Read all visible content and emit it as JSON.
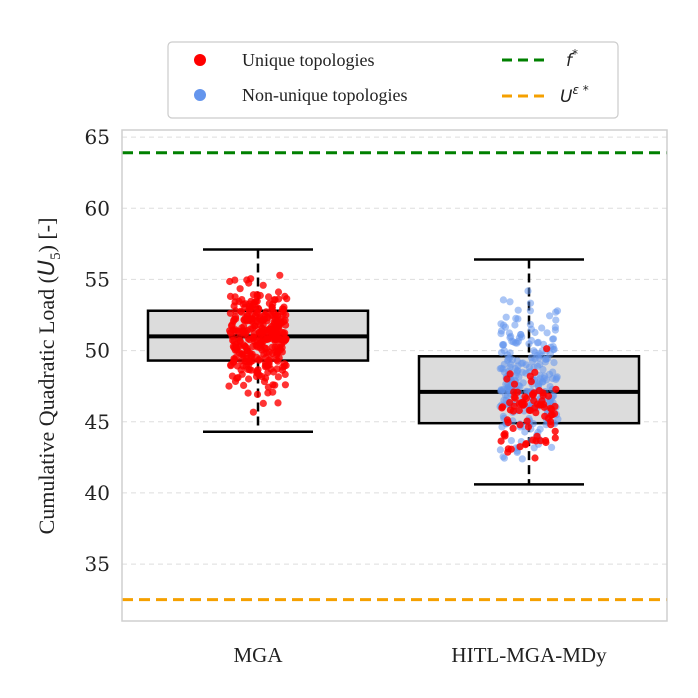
{
  "chart_data": {
    "type": "box",
    "title": "",
    "xlabel": "",
    "ylabel": "Cumulative Quadratic Load (U5) [-]",
    "ylabel_parts": {
      "prefix": "Cumulative Quadratic Load (",
      "symbol": "U",
      "subscript": "5",
      "suffix": ") [-]"
    },
    "ylim": [
      31,
      65.5
    ],
    "yticks": [
      35,
      40,
      45,
      50,
      55,
      60,
      65
    ],
    "grid": "horizontal-dashed",
    "categories": [
      "MGA",
      "HITL-MGA-MDy"
    ],
    "boxes": [
      {
        "name": "MGA",
        "whisker_low": 44.3,
        "q1": 49.3,
        "median": 51.0,
        "q3": 52.8,
        "whisker_high": 57.1
      },
      {
        "name": "HITL-MGA-MDy",
        "whisker_low": 40.6,
        "q1": 44.9,
        "median": 47.1,
        "q3": 49.6,
        "whisker_high": 56.4
      }
    ],
    "reference_lines": [
      {
        "name": "f*",
        "symbol": "f",
        "sup": "*",
        "value": 63.9,
        "color": "#008000",
        "style": "dashed"
      },
      {
        "name": "Uε*",
        "symbol": "U",
        "sup": "ε *",
        "value": 32.5,
        "color": "#f5a000",
        "style": "dashed"
      }
    ],
    "point_series": [
      {
        "name": "Unique topologies",
        "color": "#ff0000"
      },
      {
        "name": "Non-unique topologies",
        "color": "#6495ed"
      }
    ],
    "legend": {
      "position": "top-center",
      "entries": [
        "Unique topologies",
        "Non-unique topologies",
        "f*",
        "Uε*"
      ]
    }
  }
}
